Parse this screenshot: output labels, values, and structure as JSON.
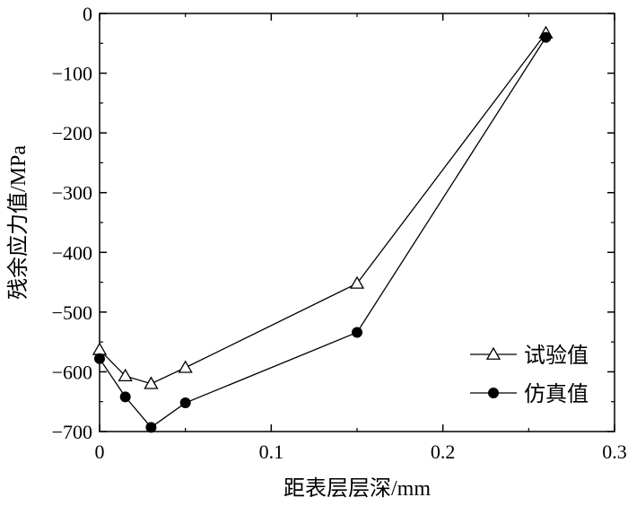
{
  "chart_data": {
    "type": "line",
    "xlabel": "距表层层深/mm",
    "ylabel": "残余应力值/MPa",
    "xlim": [
      0,
      0.3
    ],
    "ylim": [
      -700,
      0
    ],
    "x_ticks": [
      "0",
      "0.1",
      "0.2",
      "0.3"
    ],
    "y_ticks": [
      "0",
      "−100",
      "−200",
      "−300",
      "−400",
      "−500",
      "−600",
      "−700"
    ],
    "grid": false,
    "legend_position": "bottom-right",
    "series": [
      {
        "name": "试验值",
        "marker": "open-triangle",
        "color": "#000000",
        "points": [
          [
            0,
            -563
          ],
          [
            0.015,
            -607
          ],
          [
            0.03,
            -620
          ],
          [
            0.05,
            -593
          ],
          [
            0.15,
            -452
          ],
          [
            0.26,
            -33
          ]
        ]
      },
      {
        "name": "仿真值",
        "marker": "filled-circle",
        "color": "#000000",
        "points": [
          [
            0,
            -578
          ],
          [
            0.015,
            -642
          ],
          [
            0.03,
            -693
          ],
          [
            0.05,
            -652
          ],
          [
            0.15,
            -534
          ],
          [
            0.26,
            -40
          ]
        ]
      }
    ]
  }
}
